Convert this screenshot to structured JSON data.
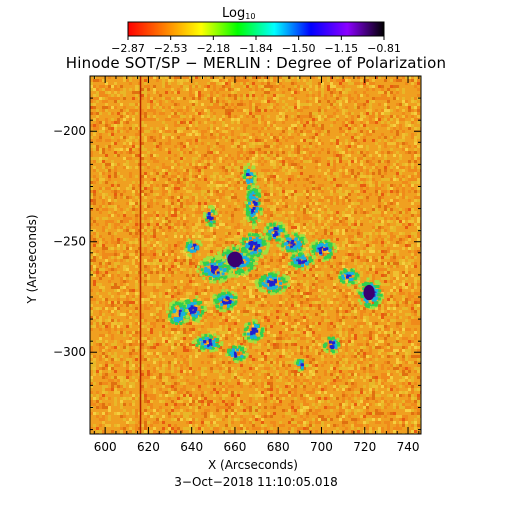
{
  "colorbar": {
    "title_text": "Log",
    "title_subscript": "10",
    "tick_labels": [
      "−2.87",
      "−2.53",
      "−2.18",
      "−1.84",
      "−1.50",
      "−1.15",
      "−0.81"
    ],
    "range": [
      -2.87,
      -0.81
    ]
  },
  "plot": {
    "title": "Hinode SOT/SP − MERLIN : Degree of Polarization",
    "xlabel": "X (Arcseconds)",
    "ylabel": "Y (Arcseconds)",
    "date": "3−Oct−2018 11:10:05.018"
  },
  "chart_data": {
    "type": "heatmap",
    "title": "Hinode SOT/SP − MERLIN : Degree of Polarization",
    "xlabel": "X (Arcseconds)",
    "ylabel": "Y (Arcseconds)",
    "xlim": [
      593,
      746
    ],
    "ylim": [
      -337,
      -175
    ],
    "x_ticks": [
      "600",
      "620",
      "640",
      "660",
      "680",
      "700",
      "720",
      "740"
    ],
    "y_ticks": [
      "−200",
      "−250",
      "−300"
    ],
    "x_tick_values": [
      600,
      620,
      640,
      660,
      680,
      700,
      720,
      740
    ],
    "y_tick_values": [
      -200,
      -250,
      -300
    ],
    "colormap": [
      "#ff0000",
      "#ff7f00",
      "#ffff00",
      "#00ff00",
      "#00ffff",
      "#0000ff",
      "#8b00ff",
      "#000000"
    ],
    "background_color": "#f0a020",
    "dark_column_x": 616
  }
}
